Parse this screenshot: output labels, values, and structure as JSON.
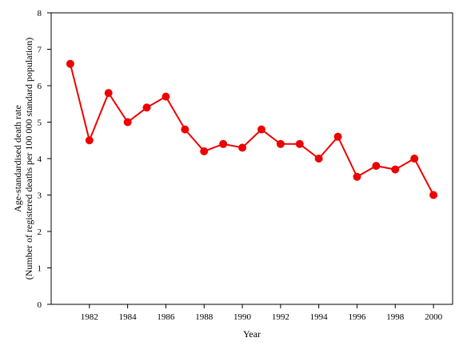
{
  "chart_data": {
    "type": "line",
    "title": "",
    "xlabel": "Year",
    "ylabel_line1": "Age-standardised death rate",
    "ylabel_line2": "(Number of registered deaths per 100 000 standard population)",
    "x": [
      1981,
      1982,
      1983,
      1984,
      1985,
      1986,
      1987,
      1988,
      1989,
      1990,
      1991,
      1992,
      1993,
      1994,
      1995,
      1996,
      1997,
      1998,
      1999,
      2000
    ],
    "series": [
      {
        "values": [
          6.6,
          4.5,
          5.8,
          5.0,
          5.4,
          5.7,
          4.8,
          4.2,
          4.4,
          4.3,
          4.8,
          4.4,
          4.4,
          4.0,
          4.6,
          3.5,
          3.8,
          3.7,
          4.0,
          3.0
        ],
        "color": "#ee0000",
        "marker": "circle"
      }
    ],
    "xlim": [
      1980,
      2001
    ],
    "ylim": [
      0,
      8
    ],
    "x_ticks": [
      1982,
      1984,
      1986,
      1988,
      1990,
      1992,
      1994,
      1996,
      1998,
      2000
    ],
    "y_ticks": [
      0,
      1,
      2,
      3,
      4,
      5,
      6,
      7,
      8
    ],
    "grid": false,
    "legend": "none"
  }
}
